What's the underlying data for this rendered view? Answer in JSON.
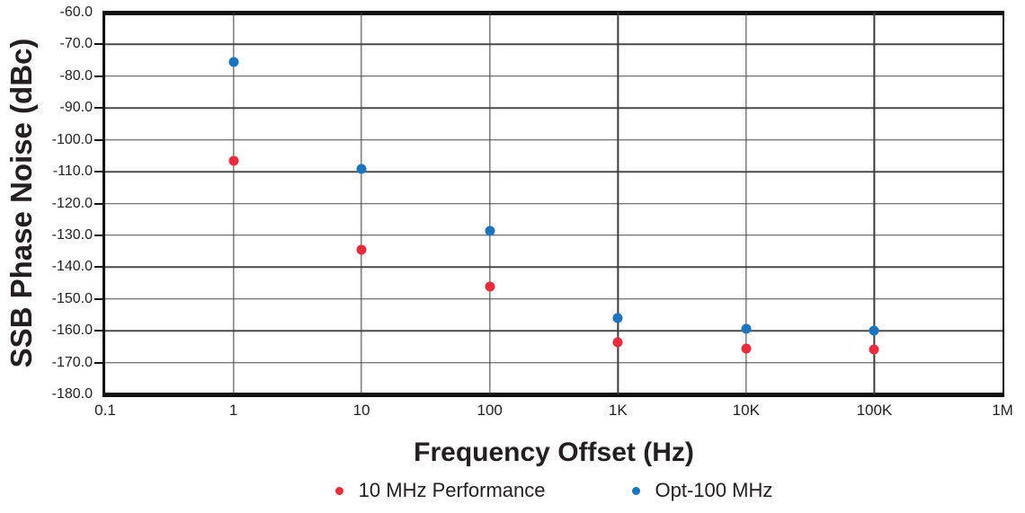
{
  "chart_data": {
    "type": "scatter",
    "xlabel": "Frequency Offset (Hz)",
    "ylabel": "SSB Phase Noise (dBc)",
    "x_scale": "log",
    "xlim": [
      0.1,
      1000000
    ],
    "ylim": [
      -180,
      -60
    ],
    "y_tick_step": 10,
    "grid": true,
    "legend_position": "bottom",
    "x_tick_labels": [
      "0.1",
      "1",
      "10",
      "100",
      "1K",
      "10K",
      "100K",
      "1M"
    ],
    "y_tick_labels": [
      "-60.0",
      "-70.0",
      "-80.0",
      "-90.0",
      "-100.0",
      "-110.0",
      "-120.0",
      "-130.0",
      "-140.0",
      "-150.0",
      "-160.0",
      "-170.0",
      "-180.0"
    ],
    "series": [
      {
        "name": "10 MHz Performance",
        "color": "#EC2B3C",
        "x": [
          1,
          10,
          100,
          1000,
          10000,
          100000
        ],
        "y": [
          -106.5,
          -134.5,
          -146,
          -163.5,
          -165.5,
          -166
        ]
      },
      {
        "name": "Opt-100 MHz",
        "color": "#1C75BC",
        "x": [
          1,
          10,
          100,
          1000,
          10000,
          100000
        ],
        "y": [
          -75.5,
          -109,
          -128.5,
          -156,
          -159.5,
          -160
        ]
      }
    ],
    "colors": {
      "grid": "#4a4a4a",
      "axis": "#111111",
      "text": "#231F20",
      "background": "#ffffff"
    }
  }
}
